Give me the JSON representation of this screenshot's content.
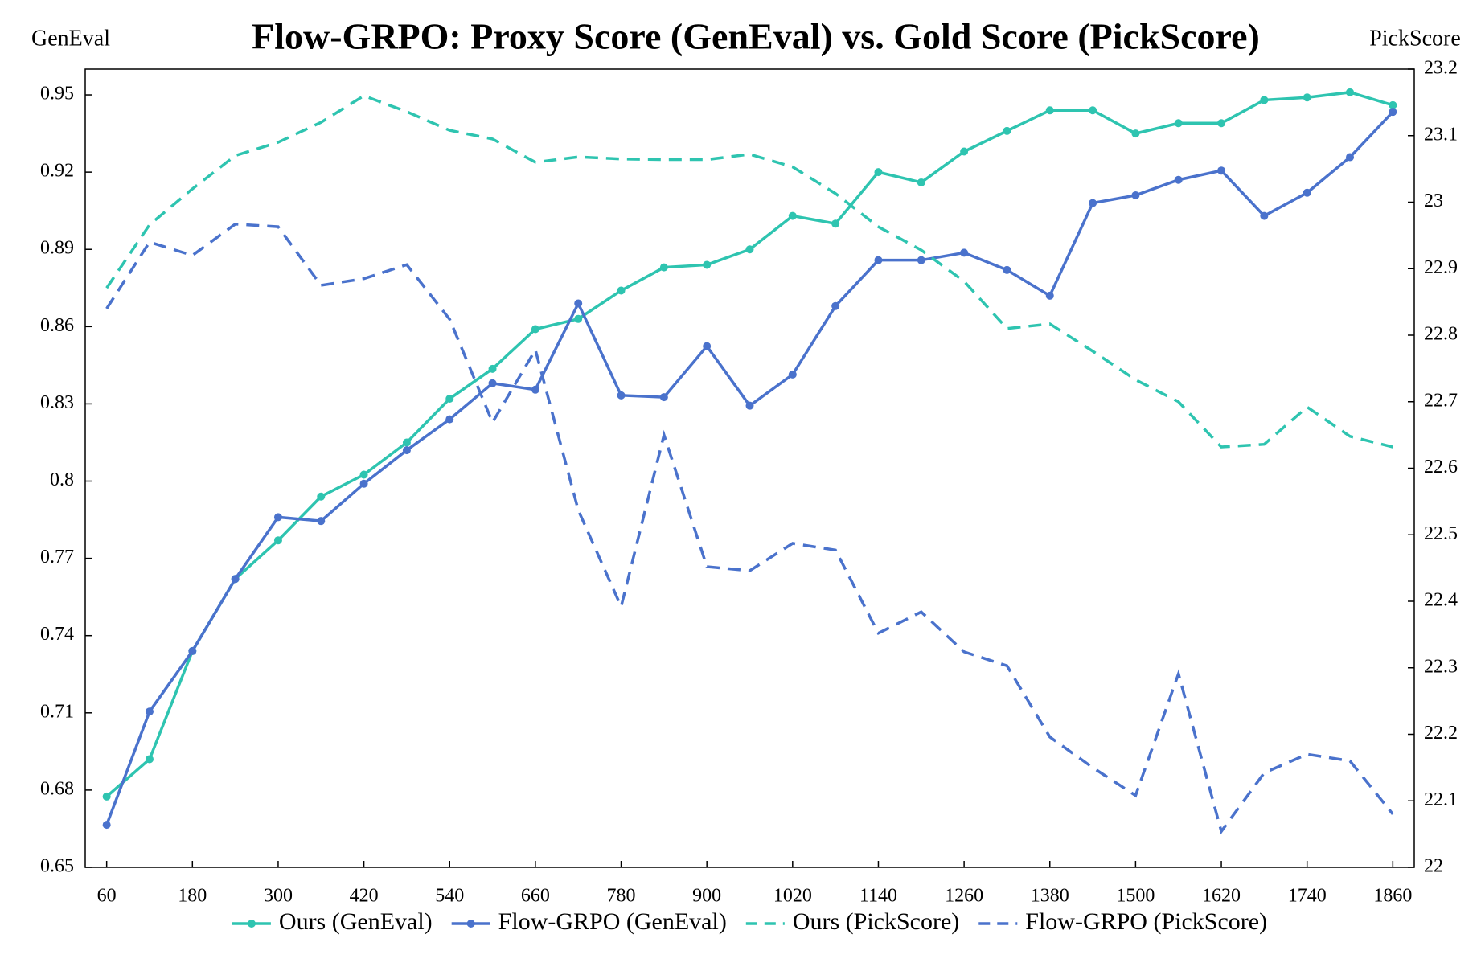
{
  "chart_data": {
    "type": "line",
    "title": "Flow-GRPO: Proxy Score (GenEval) vs. Gold Score (PickScore)",
    "ylabel": "GenEval",
    "y2label": "PickScore",
    "x": [
      60,
      120,
      180,
      240,
      300,
      360,
      420,
      480,
      540,
      600,
      660,
      720,
      780,
      840,
      900,
      960,
      1020,
      1080,
      1140,
      1200,
      1260,
      1320,
      1380,
      1440,
      1500,
      1560,
      1620,
      1680,
      1740,
      1800,
      1860
    ],
    "xlim": [
      30,
      1890
    ],
    "xticks": [
      60,
      180,
      300,
      420,
      540,
      660,
      780,
      900,
      1020,
      1140,
      1260,
      1380,
      1500,
      1620,
      1740,
      1860
    ],
    "ylim": [
      0.65,
      0.96
    ],
    "yticks": [
      0.65,
      0.68,
      0.71,
      0.74,
      0.77,
      0.8,
      0.83,
      0.86,
      0.89,
      0.92,
      0.95
    ],
    "y2lim": [
      22,
      23.2
    ],
    "y2ticks": [
      22,
      22.1,
      22.2,
      22.3,
      22.4,
      22.5,
      22.6,
      22.7,
      22.8,
      22.9,
      23,
      23.1,
      23.2
    ],
    "grid": false,
    "legend": "bottom",
    "series": [
      {
        "name": "Ours (GenEval)",
        "color": "#2ec4b0",
        "linestyle": "solid",
        "marker": true,
        "axis": "y",
        "values": [
          0.6775,
          0.692,
          0.734,
          0.762,
          0.777,
          0.794,
          0.8025,
          0.815,
          0.832,
          0.8436,
          0.859,
          0.863,
          0.874,
          0.883,
          0.884,
          0.89,
          0.903,
          0.9,
          0.92,
          0.916,
          0.928,
          0.936,
          0.944,
          0.944,
          0.935,
          0.939,
          0.939,
          0.948,
          0.949,
          0.951,
          0.946
        ]
      },
      {
        "name": "Flow-GRPO (GenEval)",
        "color": "#4a72cc",
        "linestyle": "solid",
        "marker": true,
        "axis": "y",
        "values": [
          0.6665,
          0.7105,
          0.734,
          0.762,
          0.786,
          0.7845,
          0.799,
          0.812,
          0.824,
          0.838,
          0.8355,
          0.869,
          0.8333,
          0.8326,
          0.8524,
          0.8293,
          0.8414,
          0.868,
          0.8858,
          0.8858,
          0.8887,
          0.882,
          0.872,
          0.908,
          0.911,
          0.917,
          0.9206,
          0.903,
          0.912,
          0.9258,
          0.9434
        ]
      },
      {
        "name": "Ours (PickScore)",
        "color": "#2ec4b0",
        "linestyle": "dashed",
        "marker": false,
        "axis": "y2",
        "values": [
          22.871,
          22.966,
          23.02,
          23.07,
          23.09,
          23.12,
          23.16,
          23.136,
          23.108,
          23.095,
          23.06,
          23.068,
          23.065,
          23.064,
          23.064,
          23.072,
          23.053,
          23.013,
          22.963,
          22.928,
          22.881,
          22.81,
          22.817,
          22.776,
          22.733,
          22.7,
          22.632,
          22.636,
          22.692,
          22.648,
          22.632
        ]
      },
      {
        "name": "Flow-GRPO (PickScore)",
        "color": "#4a72cc",
        "linestyle": "dashed",
        "marker": false,
        "axis": "y2",
        "values": [
          22.84,
          22.94,
          22.92,
          22.967,
          22.963,
          22.875,
          22.885,
          22.906,
          22.824,
          22.669,
          22.778,
          22.537,
          22.392,
          22.65,
          22.452,
          22.446,
          22.487,
          22.477,
          22.352,
          22.384,
          22.324,
          22.303,
          22.196,
          22.15,
          22.108,
          22.291,
          22.054,
          22.142,
          22.17,
          22.16,
          22.08
        ]
      }
    ]
  }
}
